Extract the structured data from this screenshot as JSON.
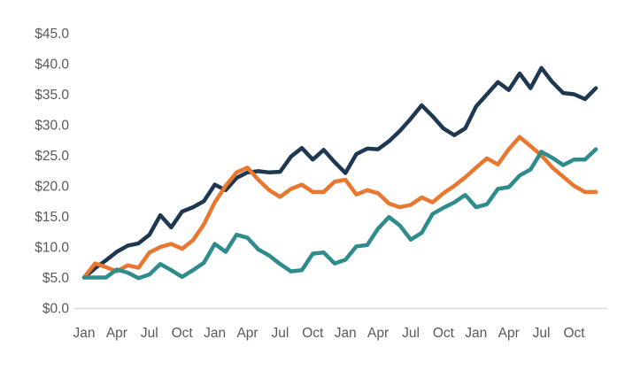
{
  "chart_data": {
    "type": "line",
    "title": "",
    "xlabel": "",
    "ylabel": "",
    "ylim": [
      0,
      45
    ],
    "y_tick_step": 5,
    "y_tick_format": "currency_one_decimal",
    "y_tick_labels": [
      "$0.0",
      "$5.0",
      "$10.0",
      "$15.0",
      "$20.0",
      "$25.0",
      "$30.0",
      "$35.0",
      "$40.0",
      "$45.0"
    ],
    "x_tick_labels": [
      "Jan",
      "Apr",
      "Jul",
      "Oct",
      "Jan",
      "Apr",
      "Jul",
      "Oct",
      "Jan",
      "Apr",
      "Jul",
      "Oct",
      "Jan",
      "Apr",
      "Jul",
      "Oct"
    ],
    "x_tick_month_indices": [
      0,
      3,
      6,
      9,
      12,
      15,
      18,
      21,
      24,
      27,
      30,
      33,
      36,
      39,
      42,
      45
    ],
    "months_per_series": 48,
    "grid": false,
    "legend": "none",
    "axis_line_color": "#D9D9D9",
    "tick_label_color": "#595959",
    "series": [
      {
        "name": "navy",
        "color": "#1F3852",
        "values": [
          5,
          6.5,
          7.8,
          9.2,
          10.2,
          10.6,
          12,
          15.2,
          13.2,
          15.8,
          16.5,
          17.5,
          20.2,
          19.3,
          21.3,
          22.2,
          22.4,
          22.2,
          22.3,
          24.8,
          26.2,
          24.3,
          25.9,
          23.9,
          22.1,
          25.2,
          26.1,
          26,
          27.3,
          29,
          31,
          33.2,
          31.4,
          29.4,
          28.3,
          29.4,
          33,
          35,
          37,
          35.7,
          38.4,
          36,
          39.3,
          37,
          35.2,
          35,
          34.2,
          36
        ]
      },
      {
        "name": "orange",
        "color": "#E8782F",
        "values": [
          5,
          7.3,
          6.7,
          6,
          7,
          6.6,
          9.1,
          10,
          10.5,
          9.7,
          11.1,
          13.7,
          17.3,
          20,
          22.2,
          23,
          21,
          19.3,
          18.2,
          19.5,
          20.2,
          19,
          19,
          20.7,
          21,
          18.6,
          19.3,
          18.8,
          17.1,
          16.5,
          16.9,
          18.1,
          17.3,
          18.8,
          20,
          21.4,
          23,
          24.5,
          23.5,
          26,
          28,
          26.5,
          25,
          23,
          21.5,
          20,
          19,
          19
        ]
      },
      {
        "name": "teal",
        "color": "#2E8C8C",
        "values": [
          5,
          5,
          5,
          6.3,
          5.8,
          4.9,
          5.5,
          7.2,
          6.2,
          5.1,
          6.2,
          7.4,
          10.5,
          9.2,
          12,
          11.5,
          9.6,
          8.6,
          7.2,
          6,
          6.2,
          8.9,
          9.1,
          7.3,
          7.9,
          10.1,
          10.3,
          13,
          14.9,
          13.5,
          11.2,
          12.3,
          15.4,
          16.4,
          17.3,
          18.5,
          16.5,
          17,
          19.5,
          19.8,
          21.7,
          22.7,
          25.6,
          24.6,
          23.4,
          24.3,
          24.3,
          26
        ]
      }
    ]
  }
}
